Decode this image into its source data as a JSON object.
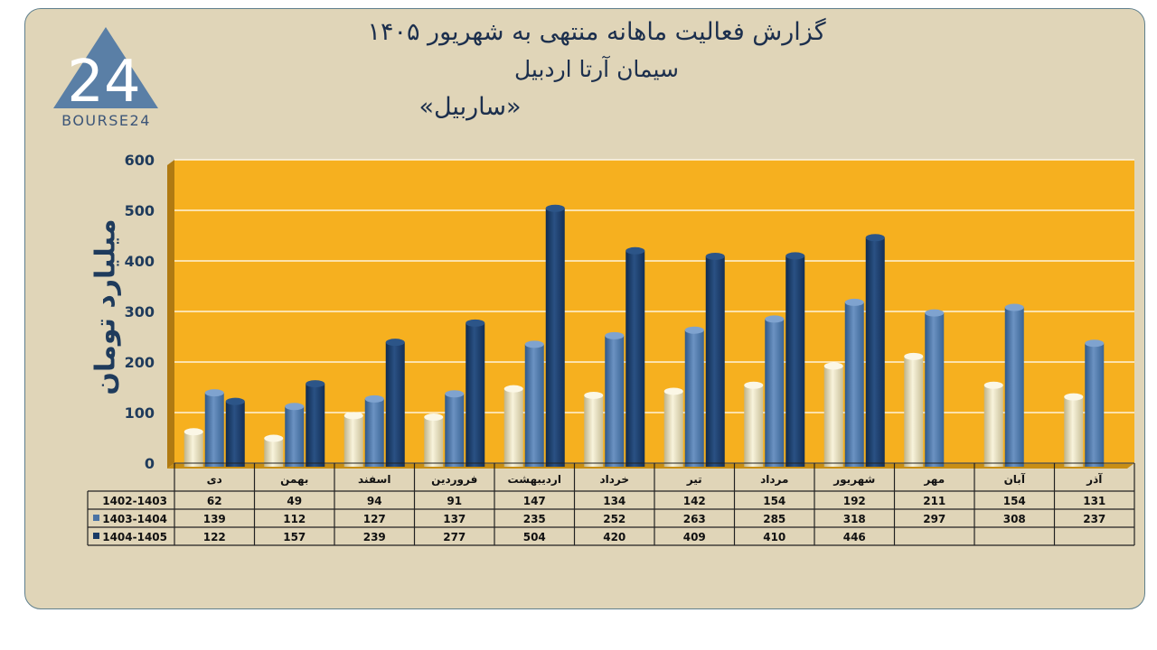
{
  "title": {
    "line1": "گزارش  فعالیت ماهانه منتهی به شهریور ۱۴۰۵",
    "line2": "سیمان آرتا اردبیل",
    "line3": "«ساربیل»"
  },
  "logo": {
    "mark": "24",
    "text": "BOURSE24"
  },
  "colors": {
    "plot_bg": "#f6b01f",
    "series": [
      "#efe8c6",
      "#4a73a4",
      "#183a66"
    ]
  },
  "chart_data": {
    "type": "bar",
    "ylabel": "میلیارد تومان",
    "ylim": [
      0,
      600
    ],
    "yticks": [
      0,
      100,
      200,
      300,
      400,
      500,
      600
    ],
    "categories": [
      "دی",
      "بهمن",
      "اسفند",
      "فروردین",
      "اردیبهشت",
      "خرداد",
      "تیر",
      "مرداد",
      "شهریور",
      "مهر",
      "آبان",
      "آذر"
    ],
    "series": [
      {
        "name": "1402-1403",
        "values": [
          62,
          49,
          94,
          91,
          147,
          134,
          142,
          154,
          192,
          211,
          154,
          131
        ]
      },
      {
        "name": "1403-1404",
        "values": [
          139,
          112,
          127,
          137,
          235,
          252,
          263,
          285,
          318,
          297,
          308,
          237
        ]
      },
      {
        "name": "1404-1405",
        "values": [
          122,
          157,
          239,
          277,
          504,
          420,
          409,
          410,
          446,
          null,
          null,
          null
        ]
      }
    ],
    "legend": "table-left"
  }
}
